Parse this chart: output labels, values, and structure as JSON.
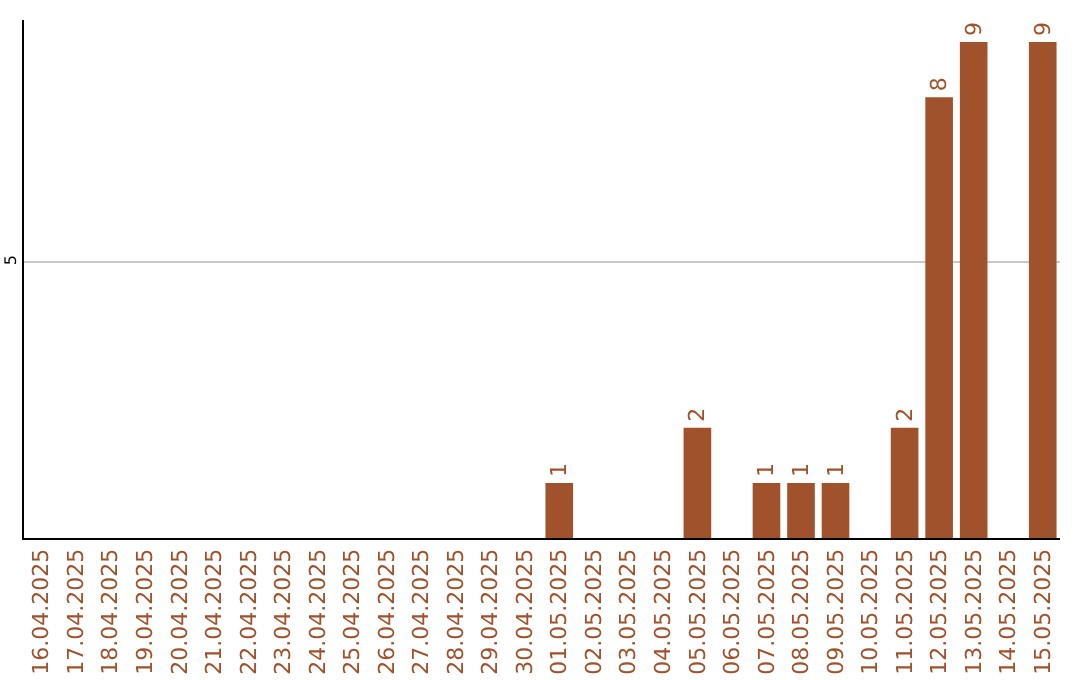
{
  "chart_data": {
    "type": "bar",
    "categories": [
      "16.04.2025",
      "17.04.2025",
      "18.04.2025",
      "19.04.2025",
      "20.04.2025",
      "21.04.2025",
      "22.04.2025",
      "23.04.2025",
      "24.04.2025",
      "25.04.2025",
      "26.04.2025",
      "27.04.2025",
      "28.04.2025",
      "29.04.2025",
      "30.04.2025",
      "01.05.2025",
      "02.05.2025",
      "03.05.2025",
      "04.05.2025",
      "05.05.2025",
      "06.05.2025",
      "07.05.2025",
      "08.05.2025",
      "09.05.2025",
      "10.05.2025",
      "11.05.2025",
      "12.05.2025",
      "13.05.2025",
      "14.05.2025",
      "15.05.2025"
    ],
    "values": [
      null,
      null,
      null,
      null,
      null,
      null,
      null,
      null,
      null,
      null,
      null,
      null,
      null,
      null,
      null,
      1,
      null,
      null,
      null,
      2,
      null,
      1,
      1,
      1,
      null,
      2,
      8,
      9,
      null,
      9
    ],
    "color": "#a0522d",
    "ylim": [
      0,
      9.4
    ],
    "yticks": [
      5
    ],
    "grid": "y",
    "data_labels": true
  }
}
